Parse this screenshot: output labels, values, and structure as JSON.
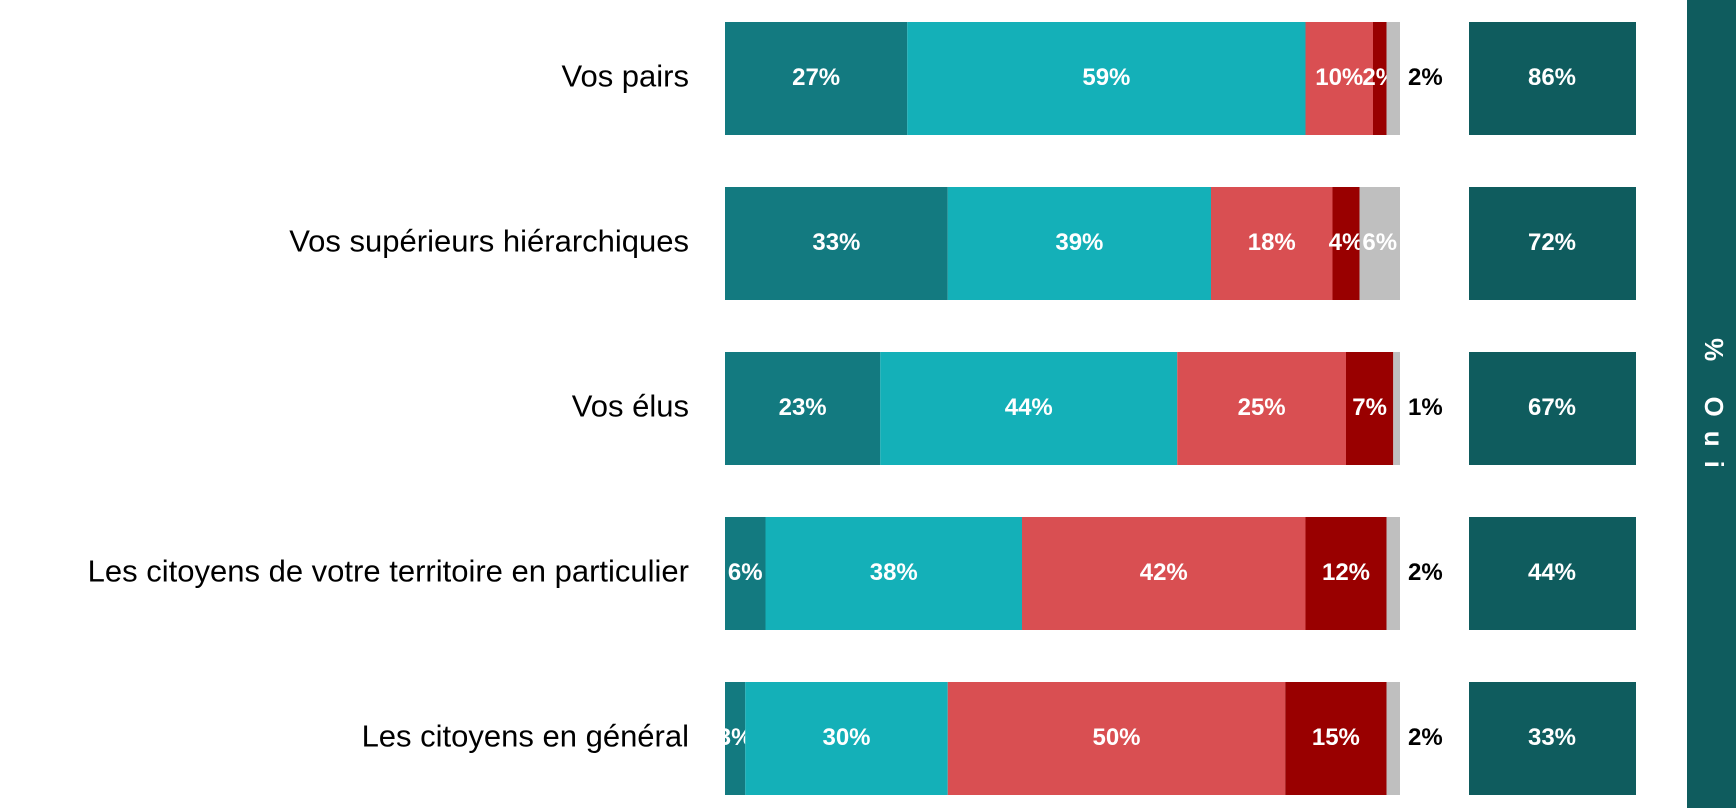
{
  "chart_data": {
    "type": "stacked_barh",
    "categories": [
      "Vos pairs",
      "Vos supérieurs hiérarchiques",
      "Vos élus",
      "Les citoyens de votre territoire en particulier",
      "Les citoyens en général"
    ],
    "xlim": [
      0,
      100
    ],
    "series": [
      {
        "color": "#137a80",
        "values": [
          27,
          33,
          23,
          6,
          3
        ],
        "value_labels": [
          "27%",
          "33%",
          "23%",
          "6%",
          "3%"
        ]
      },
      {
        "color": "#14b0b8",
        "values": [
          59,
          39,
          44,
          38,
          30
        ],
        "value_labels": [
          "59%",
          "39%",
          "44%",
          "38%",
          "30%"
        ]
      },
      {
        "color": "#d94f52",
        "values": [
          10,
          18,
          25,
          42,
          50
        ],
        "value_labels": [
          "10%",
          "18%",
          "25%",
          "42%",
          "50%"
        ]
      },
      {
        "color": "#990000",
        "values": [
          2,
          4,
          7,
          12,
          15
        ],
        "value_labels": [
          "2%",
          "4%",
          "7%",
          "12%",
          "15%"
        ]
      },
      {
        "color": "#bfbfbf",
        "values": [
          2,
          6,
          1,
          2,
          2
        ],
        "value_labels": [
          "2%",
          "6%",
          "1%",
          "2%",
          "2%"
        ]
      }
    ],
    "totals": {
      "label": "% Oui",
      "color": "#0f5c5e",
      "values": [
        86,
        72,
        67,
        44,
        33
      ],
      "value_labels": [
        "86%",
        "72%",
        "67%",
        "44%",
        "33%"
      ]
    }
  }
}
